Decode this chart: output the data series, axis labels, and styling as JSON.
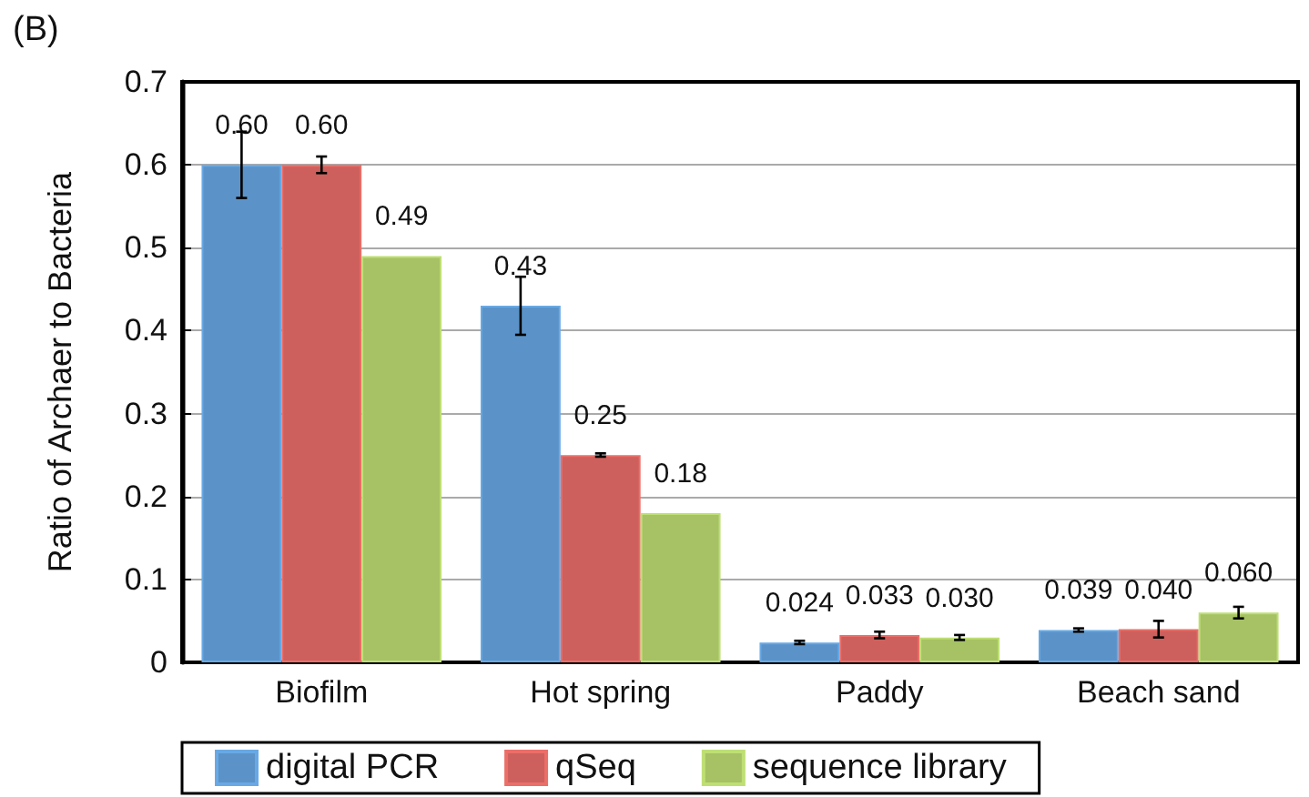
{
  "chart_data": {
    "type": "bar",
    "title": "(B)",
    "ylabel": "Ratio of Archaer to Bacteria",
    "categories": [
      "Biofilm",
      "Hot spring",
      "Paddy",
      "Beach sand"
    ],
    "series": [
      {
        "name": "digital PCR",
        "color": "#5b93c8",
        "values": [
          0.6,
          0.43,
          0.024,
          0.039
        ],
        "errors": [
          0.04,
          0.035,
          0.002,
          0.002
        ]
      },
      {
        "name": "qSeq",
        "color": "#cd605c",
        "values": [
          0.6,
          0.25,
          0.033,
          0.04
        ],
        "errors": [
          0.01,
          0.002,
          0.004,
          0.01
        ]
      },
      {
        "name": "sequence library",
        "color": "#a6c265",
        "values": [
          0.49,
          0.18,
          0.03,
          0.06
        ],
        "errors": [
          null,
          null,
          0.003,
          0.007
        ]
      }
    ],
    "value_labels": [
      [
        "0.60",
        "0.43",
        "0.024",
        "0.039"
      ],
      [
        "0.60",
        "0.25",
        "0.033",
        "0.040"
      ],
      [
        "0.49",
        "0.18",
        "0.030",
        "0.060"
      ]
    ],
    "ylim": [
      0,
      0.7
    ],
    "yticks": [
      0,
      0.1,
      0.2,
      0.3,
      0.4,
      0.5,
      0.6,
      0.7
    ],
    "grid": "y",
    "legend": "bottom"
  }
}
